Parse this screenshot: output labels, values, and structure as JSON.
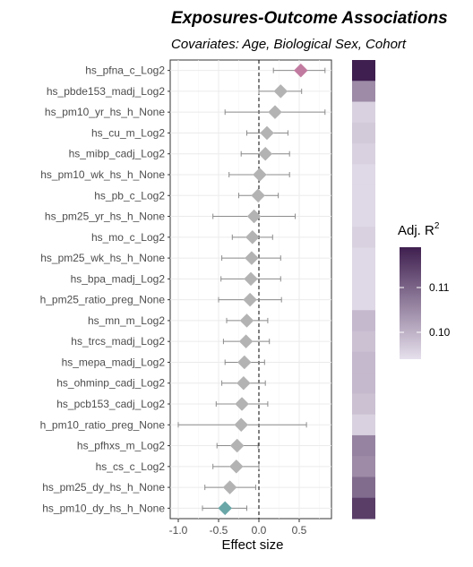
{
  "title": "Exposures-Outcome Associations",
  "subtitle": "Covariates: Age, Biological Sex,  Cohort",
  "chart_data": {
    "type": "forest",
    "xlabel": "Effect size",
    "xlim": [
      -1.1,
      0.9
    ],
    "xticks": [
      -1.0,
      -0.5,
      0.0,
      0.5
    ],
    "xtick_labels": [
      "-1.0",
      "-0.5",
      "0.0",
      "0.5"
    ],
    "reference_line": 0,
    "grid": true,
    "legend": {
      "title": "Adj. R",
      "title_superscript": "2",
      "position": "right",
      "range": [
        0.094,
        0.119
      ],
      "ticks": [
        0.1,
        0.11
      ],
      "tick_labels": [
        "0.10",
        "0.11"
      ],
      "color_low": "#e6e0ec",
      "color_high": "#3f1f4f"
    },
    "colors": {
      "positive": "#c27ba0",
      "negative": "#6aa7a8",
      "neutral": "#b3b3b3"
    },
    "rows": [
      {
        "label": "hs_pfna_c_Log2",
        "estimate": 0.52,
        "lower": 0.18,
        "upper": 0.82,
        "r2": 0.119,
        "highlight": "positive"
      },
      {
        "label": "hs_pbde153_madj_Log2",
        "estimate": 0.27,
        "lower": 0.0,
        "upper": 0.53,
        "r2": 0.105,
        "highlight": "none"
      },
      {
        "label": "hs_pm10_yr_hs_h_None",
        "estimate": 0.2,
        "lower": -0.42,
        "upper": 0.82,
        "r2": 0.096,
        "highlight": "none"
      },
      {
        "label": "hs_cu_m_Log2",
        "estimate": 0.1,
        "lower": -0.15,
        "upper": 0.36,
        "r2": 0.097,
        "highlight": "none"
      },
      {
        "label": "hs_mibp_cadj_Log2",
        "estimate": 0.08,
        "lower": -0.22,
        "upper": 0.38,
        "r2": 0.096,
        "highlight": "none"
      },
      {
        "label": "hs_pm10_wk_hs_h_None",
        "estimate": 0.01,
        "lower": -0.37,
        "upper": 0.38,
        "r2": 0.095,
        "highlight": "none"
      },
      {
        "label": "hs_pb_c_Log2",
        "estimate": -0.01,
        "lower": -0.25,
        "upper": 0.24,
        "r2": 0.095,
        "highlight": "none"
      },
      {
        "label": "hs_pm25_yr_hs_h_None",
        "estimate": -0.06,
        "lower": -0.57,
        "upper": 0.45,
        "r2": 0.095,
        "highlight": "none"
      },
      {
        "label": "hs_mo_c_Log2",
        "estimate": -0.08,
        "lower": -0.33,
        "upper": 0.17,
        "r2": 0.096,
        "highlight": "none"
      },
      {
        "label": "hs_pm25_wk_hs_h_None",
        "estimate": -0.09,
        "lower": -0.46,
        "upper": 0.27,
        "r2": 0.095,
        "highlight": "none"
      },
      {
        "label": "hs_bpa_madj_Log2",
        "estimate": -0.1,
        "lower": -0.47,
        "upper": 0.27,
        "r2": 0.095,
        "highlight": "none"
      },
      {
        "label": "h_pm25_ratio_preg_None",
        "estimate": -0.11,
        "lower": -0.5,
        "upper": 0.28,
        "r2": 0.095,
        "highlight": "none"
      },
      {
        "label": "hs_mn_m_Log2",
        "estimate": -0.15,
        "lower": -0.4,
        "upper": 0.11,
        "r2": 0.099,
        "highlight": "none"
      },
      {
        "label": "hs_trcs_madj_Log2",
        "estimate": -0.16,
        "lower": -0.44,
        "upper": 0.13,
        "r2": 0.098,
        "highlight": "none"
      },
      {
        "label": "hs_mepa_madj_Log2",
        "estimate": -0.18,
        "lower": -0.42,
        "upper": 0.07,
        "r2": 0.099,
        "highlight": "none"
      },
      {
        "label": "hs_ohminp_cadj_Log2",
        "estimate": -0.19,
        "lower": -0.46,
        "upper": 0.08,
        "r2": 0.099,
        "highlight": "none"
      },
      {
        "label": "hs_pcb153_cadj_Log2",
        "estimate": -0.21,
        "lower": -0.53,
        "upper": 0.11,
        "r2": 0.098,
        "highlight": "none"
      },
      {
        "label": "h_pm10_ratio_preg_None",
        "estimate": -0.22,
        "lower": -1.0,
        "upper": 0.59,
        "r2": 0.096,
        "highlight": "none"
      },
      {
        "label": "hs_pfhxs_m_Log2",
        "estimate": -0.27,
        "lower": -0.52,
        "upper": -0.01,
        "r2": 0.106,
        "highlight": "none"
      },
      {
        "label": "hs_cs_c_Log2",
        "estimate": -0.28,
        "lower": -0.57,
        "upper": 0.0,
        "r2": 0.105,
        "highlight": "none"
      },
      {
        "label": "hs_pm25_dy_hs_h_None",
        "estimate": -0.36,
        "lower": -0.67,
        "upper": -0.04,
        "r2": 0.109,
        "highlight": "none"
      },
      {
        "label": "hs_pm10_dy_hs_h_None",
        "estimate": -0.42,
        "lower": -0.7,
        "upper": -0.15,
        "r2": 0.115,
        "highlight": "negative"
      }
    ]
  }
}
